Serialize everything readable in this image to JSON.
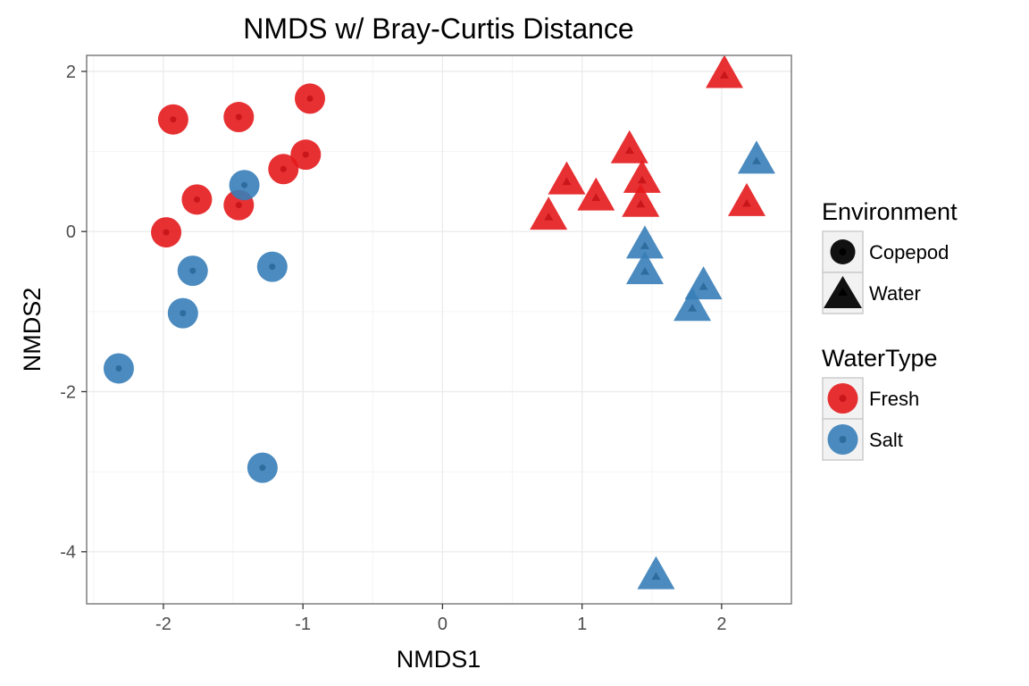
{
  "chart_data": {
    "type": "scatter",
    "title": "NMDS w/ Bray-Curtis Distance",
    "xlabel": "NMDS1",
    "ylabel": "NMDS2",
    "xlim": [
      -2.55,
      2.5
    ],
    "ylim": [
      -4.65,
      2.2
    ],
    "x_ticks": [
      -2,
      -1,
      0,
      1,
      2
    ],
    "y_ticks": [
      2,
      0,
      -2,
      -4
    ],
    "grid": true,
    "legend_position": "right",
    "colors": {
      "Fresh": "#e41a1c",
      "Salt": "#377eb8"
    },
    "legends": [
      {
        "title": "Environment",
        "entries": [
          {
            "label": "Copepod",
            "shape": "circle"
          },
          {
            "label": "Water",
            "shape": "triangle"
          }
        ]
      },
      {
        "title": "WaterType",
        "entries": [
          {
            "label": "Fresh",
            "color": "#e41a1c"
          },
          {
            "label": "Salt",
            "color": "#377eb8"
          }
        ]
      }
    ],
    "points": [
      {
        "x": -1.93,
        "y": 1.4,
        "environment": "Copepod",
        "watertype": "Fresh"
      },
      {
        "x": -1.46,
        "y": 1.43,
        "environment": "Copepod",
        "watertype": "Fresh"
      },
      {
        "x": -0.95,
        "y": 1.66,
        "environment": "Copepod",
        "watertype": "Fresh"
      },
      {
        "x": -0.98,
        "y": 0.96,
        "environment": "Copepod",
        "watertype": "Fresh"
      },
      {
        "x": -1.14,
        "y": 0.78,
        "environment": "Copepod",
        "watertype": "Fresh"
      },
      {
        "x": -1.76,
        "y": 0.4,
        "environment": "Copepod",
        "watertype": "Fresh"
      },
      {
        "x": -1.46,
        "y": 0.33,
        "environment": "Copepod",
        "watertype": "Fresh"
      },
      {
        "x": -1.98,
        "y": -0.01,
        "environment": "Copepod",
        "watertype": "Fresh"
      },
      {
        "x": -1.42,
        "y": 0.58,
        "environment": "Copepod",
        "watertype": "Salt"
      },
      {
        "x": -1.79,
        "y": -0.49,
        "environment": "Copepod",
        "watertype": "Salt"
      },
      {
        "x": -1.22,
        "y": -0.44,
        "environment": "Copepod",
        "watertype": "Salt"
      },
      {
        "x": -1.86,
        "y": -1.02,
        "environment": "Copepod",
        "watertype": "Salt"
      },
      {
        "x": -2.32,
        "y": -1.71,
        "environment": "Copepod",
        "watertype": "Salt"
      },
      {
        "x": -1.29,
        "y": -2.95,
        "environment": "Copepod",
        "watertype": "Salt"
      },
      {
        "x": 2.02,
        "y": 1.95,
        "environment": "Water",
        "watertype": "Fresh"
      },
      {
        "x": 1.34,
        "y": 1.01,
        "environment": "Water",
        "watertype": "Fresh"
      },
      {
        "x": 0.89,
        "y": 0.62,
        "environment": "Water",
        "watertype": "Fresh"
      },
      {
        "x": 1.43,
        "y": 0.64,
        "environment": "Water",
        "watertype": "Fresh"
      },
      {
        "x": 1.1,
        "y": 0.42,
        "environment": "Water",
        "watertype": "Fresh"
      },
      {
        "x": 1.42,
        "y": 0.34,
        "environment": "Water",
        "watertype": "Fresh"
      },
      {
        "x": 2.18,
        "y": 0.35,
        "environment": "Water",
        "watertype": "Fresh"
      },
      {
        "x": 0.76,
        "y": 0.18,
        "environment": "Water",
        "watertype": "Fresh"
      },
      {
        "x": 2.25,
        "y": 0.88,
        "environment": "Water",
        "watertype": "Salt"
      },
      {
        "x": 1.45,
        "y": -0.18,
        "environment": "Water",
        "watertype": "Salt"
      },
      {
        "x": 1.45,
        "y": -0.5,
        "environment": "Water",
        "watertype": "Salt"
      },
      {
        "x": 1.87,
        "y": -0.69,
        "environment": "Water",
        "watertype": "Salt"
      },
      {
        "x": 1.79,
        "y": -0.96,
        "environment": "Water",
        "watertype": "Salt"
      },
      {
        "x": 1.53,
        "y": -4.31,
        "environment": "Water",
        "watertype": "Salt"
      }
    ]
  }
}
